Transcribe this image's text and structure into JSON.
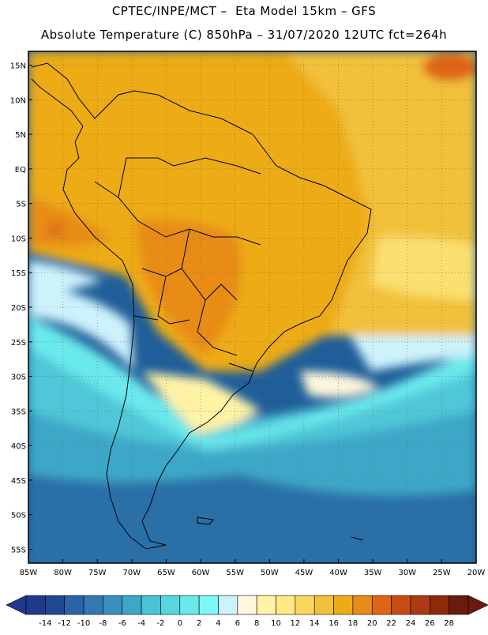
{
  "header": {
    "title_line1": "CPTEC/INPE/MCT –  Eta Model 15km – GFS",
    "title_line2": "Absolute Temperature (C) 850hPa – 31/07/2020 12UTC fct=264h"
  },
  "map": {
    "lat_labels": [
      "15N",
      "10N",
      "5N",
      "EQ",
      "5S",
      "10S",
      "15S",
      "20S",
      "25S",
      "30S",
      "35S",
      "40S",
      "45S",
      "50S",
      "55S"
    ],
    "lon_labels": [
      "85W",
      "80W",
      "75W",
      "70W",
      "65W",
      "60W",
      "55W",
      "50W",
      "45W",
      "40W",
      "35W",
      "30W",
      "25W",
      "20W"
    ],
    "lon_range": [
      -85,
      -20
    ],
    "lat_range": [
      -57,
      17
    ],
    "grid": "dotted"
  },
  "colorbar": {
    "labels": [
      "-14",
      "-12",
      "-10",
      "-8",
      "-6",
      "-4",
      "-2",
      "0",
      "2",
      "4",
      "6",
      "8",
      "10",
      "12",
      "14",
      "16",
      "18",
      "20",
      "22",
      "24",
      "26",
      "28"
    ],
    "colors": [
      "#1f3a8a",
      "#20488f",
      "#2a64a6",
      "#3577b5",
      "#3c8fc0",
      "#3ea7c8",
      "#4bc2d6",
      "#57d6e2",
      "#6ae9ec",
      "#7df7f7",
      "#cdf2fb",
      "#fff6dd",
      "#fff3a6",
      "#ffe886",
      "#fad75e",
      "#f2c13b",
      "#edab17",
      "#e88c17",
      "#de6418",
      "#c94a12",
      "#ab3a12",
      "#8c2a0e",
      "#6b1a10"
    ],
    "under_color": "#1f3a8a",
    "over_color": "#6b1a10"
  }
}
